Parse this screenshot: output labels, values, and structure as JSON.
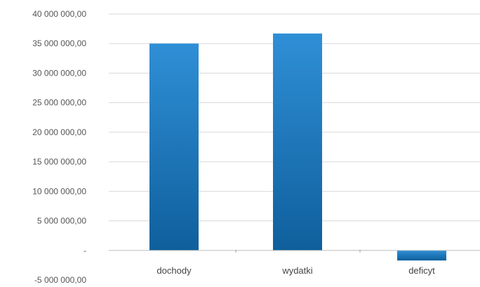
{
  "chart_data": {
    "type": "bar",
    "title": "",
    "xlabel": "",
    "ylabel": "",
    "categories": [
      "dochody",
      "wydatki",
      "deficyt"
    ],
    "values": [
      35000000,
      36700000,
      -1700000
    ],
    "ylim": [
      -5000000,
      40000000
    ],
    "yticks": [
      40000000,
      35000000,
      30000000,
      25000000,
      20000000,
      15000000,
      10000000,
      5000000,
      0,
      -5000000
    ],
    "ytick_labels": [
      "40 000 000,00",
      "35 000 000,00",
      "30 000 000,00",
      "25 000 000,00",
      "20 000 000,00",
      "15 000 000,00",
      "10 000 000,00",
      "5 000 000,00",
      "-",
      "-5 000 000,00"
    ],
    "grid": true,
    "legend": "none",
    "colors": {
      "bar_top": "#2f8fd6",
      "bar_bottom": "#0f5f9c",
      "grid": "#d9d9d9",
      "baseline": "#bfbfbf"
    }
  }
}
